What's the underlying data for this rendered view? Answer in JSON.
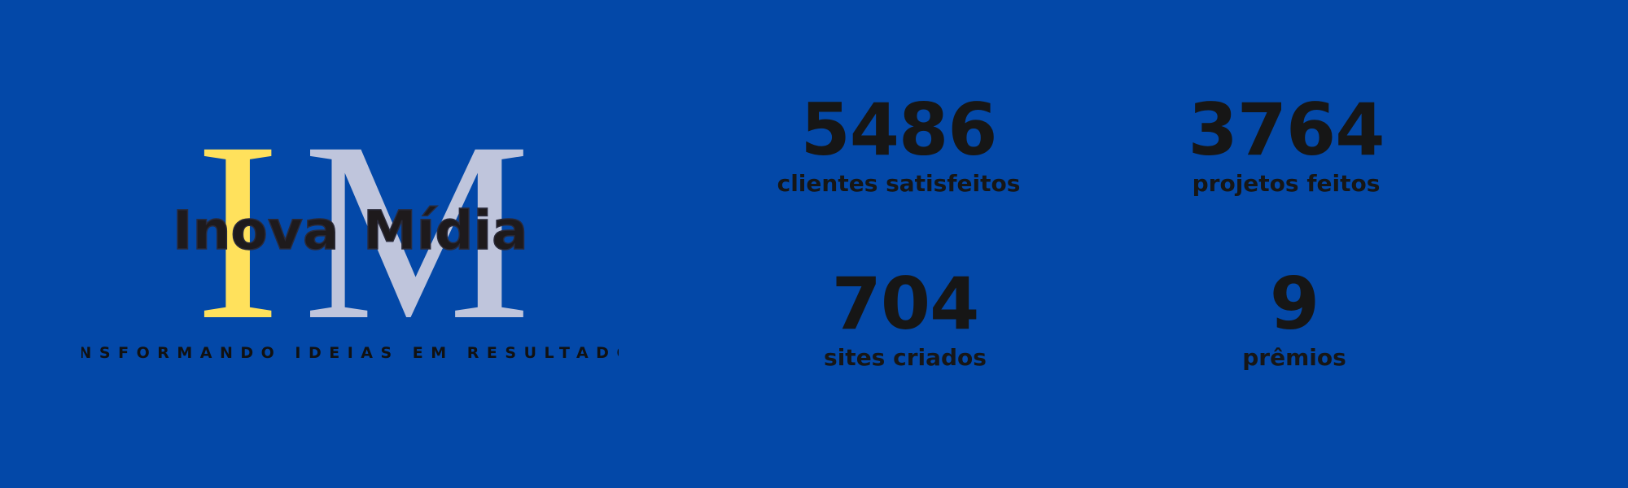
{
  "logo": {
    "letter_left": "I",
    "letter_right": "M",
    "brand_word_1": "Inova",
    "brand_word_2": "Mídia",
    "tagline": "TRANSFORMANDO IDEIAS EM RESULTADOS",
    "colors": {
      "letter_i": "#ffe15c",
      "letter_m": "#bfc5dc",
      "brand_text": "#1e1a1c",
      "tagline": "#111111"
    }
  },
  "stats": [
    {
      "value": "5486",
      "label": "clientes satisfeitos"
    },
    {
      "value": "3764",
      "label": "projetos feitos"
    },
    {
      "value": "704",
      "label": "sites criados"
    },
    {
      "value": "9",
      "label": "prêmios"
    }
  ],
  "colors": {
    "background": "#0348a8",
    "stat_text": "#161616"
  }
}
